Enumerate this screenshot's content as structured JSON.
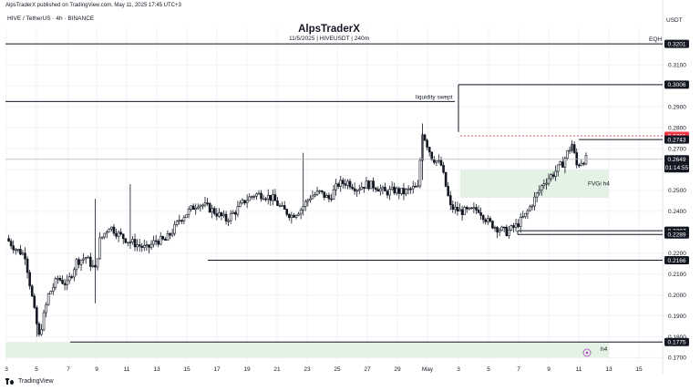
{
  "header": {
    "published": "AlpsTraderX published on TradingView.com, May 11, 2025 17:45 UTC+3",
    "symbol": "HIVE / TetherUS · 4h · BINANCE",
    "author": "AlpsTraderX",
    "subtitle": "11/5/2025 | HIVEUSDT | 240m",
    "currency": "USDT"
  },
  "footer": {
    "brand": "TradingView"
  },
  "colors": {
    "up": "#2a2e39",
    "down": "#2a2e39",
    "zone": "#e3f2e4",
    "red": "#f23645",
    "dark": "#131722",
    "current": "#b2b5be"
  },
  "chart_data": {
    "type": "candlestick",
    "timeframe": "4h",
    "ylim": [
      0.168,
      0.328
    ],
    "y_ticks": [
      "0.3100",
      "0.3000",
      "0.2900",
      "0.2800",
      "0.2700",
      "0.2600",
      "0.2500",
      "0.2400",
      "0.2300",
      "0.2200",
      "0.2100",
      "0.2000",
      "0.1900",
      "0.1800",
      "0.1700"
    ],
    "x_ticks": [
      "3",
      "5",
      "7",
      "9",
      "11",
      "13",
      "15",
      "17",
      "19",
      "21",
      "23",
      "25",
      "27",
      "29",
      "May",
      "3",
      "5",
      "7",
      "9",
      "11",
      "13",
      "15"
    ],
    "series_name": "HIVEUSDT",
    "close_path": [
      [
        0,
        0.227
      ],
      [
        4,
        0.222
      ],
      [
        8,
        0.219
      ],
      [
        12,
        0.192
      ],
      [
        14,
        0.18
      ],
      [
        18,
        0.2
      ],
      [
        22,
        0.208
      ],
      [
        26,
        0.205
      ],
      [
        30,
        0.216
      ],
      [
        34,
        0.218
      ],
      [
        38,
        0.212
      ],
      [
        40,
        0.226
      ],
      [
        44,
        0.233
      ],
      [
        48,
        0.229
      ],
      [
        52,
        0.226
      ],
      [
        56,
        0.224
      ],
      [
        60,
        0.222
      ],
      [
        64,
        0.226
      ],
      [
        68,
        0.226
      ],
      [
        72,
        0.232
      ],
      [
        74,
        0.236
      ],
      [
        78,
        0.24
      ],
      [
        82,
        0.244
      ],
      [
        86,
        0.242
      ],
      [
        90,
        0.239
      ],
      [
        94,
        0.236
      ],
      [
        98,
        0.24
      ],
      [
        102,
        0.245
      ],
      [
        106,
        0.248
      ],
      [
        110,
        0.248
      ],
      [
        114,
        0.246
      ],
      [
        118,
        0.241
      ],
      [
        122,
        0.238
      ],
      [
        126,
        0.241
      ],
      [
        130,
        0.247
      ],
      [
        134,
        0.249
      ],
      [
        138,
        0.246
      ],
      [
        142,
        0.253
      ],
      [
        146,
        0.254
      ],
      [
        150,
        0.251
      ],
      [
        154,
        0.253
      ],
      [
        158,
        0.252
      ],
      [
        162,
        0.249
      ],
      [
        166,
        0.25
      ],
      [
        170,
        0.249
      ],
      [
        174,
        0.251
      ],
      [
        176,
        0.251
      ],
      [
        178,
        0.278
      ],
      [
        182,
        0.266
      ],
      [
        186,
        0.262
      ],
      [
        190,
        0.242
      ],
      [
        194,
        0.24
      ],
      [
        198,
        0.24
      ],
      [
        202,
        0.241
      ],
      [
        206,
        0.235
      ],
      [
        210,
        0.232
      ],
      [
        214,
        0.23
      ],
      [
        218,
        0.233
      ],
      [
        222,
        0.238
      ],
      [
        226,
        0.246
      ],
      [
        230,
        0.254
      ],
      [
        234,
        0.258
      ],
      [
        238,
        0.263
      ],
      [
        240,
        0.268
      ],
      [
        242,
        0.272
      ],
      [
        244,
        0.262
      ],
      [
        246,
        0.264
      ],
      [
        248,
        0.265
      ]
    ],
    "levels": [
      {
        "label": "EQH",
        "value": 0.3201,
        "tag": "0.3201"
      },
      {
        "label": "",
        "value": 0.3006,
        "tag": "0.3006"
      },
      {
        "label": "",
        "value": 0.2761,
        "tag": "0.2761",
        "style": "dashed-red"
      },
      {
        "label": "",
        "value": 0.2743,
        "tag": "0.2743"
      },
      {
        "label": "",
        "value": 0.2649,
        "tag": "0.2649",
        "sub": "01:14:55",
        "style": "current"
      },
      {
        "label": "",
        "value": 0.2307,
        "tag": "0.2307"
      },
      {
        "label": "",
        "value": 0.2289,
        "tag": "0.2289"
      },
      {
        "label": "",
        "value": 0.2166,
        "tag": "0.2166"
      },
      {
        "label": "",
        "value": 0.1775,
        "tag": "0.1775"
      }
    ],
    "annotations": [
      "liquidity swept",
      "FVGi h4",
      "h4",
      "EQH"
    ],
    "zones": [
      {
        "name": "FVGi h4",
        "ymin": 0.2465,
        "ymax": 0.26
      },
      {
        "name": "h4",
        "ymin": 0.17,
        "ymax": 0.1775
      }
    ]
  }
}
